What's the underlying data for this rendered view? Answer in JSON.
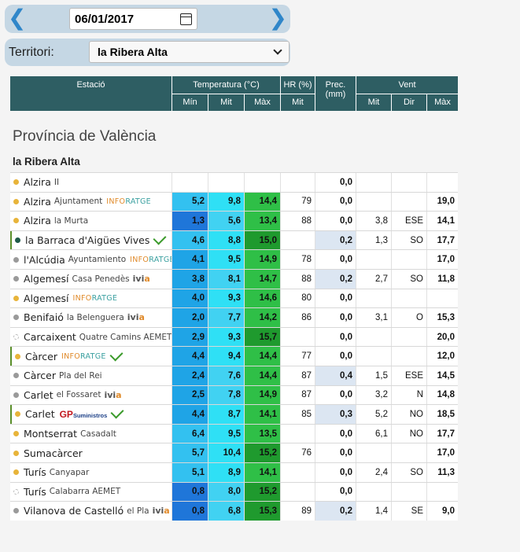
{
  "date_picker": {
    "value": "06/01/2017",
    "prev_icon": "chevron-left-icon",
    "next_icon": "chevron-right-icon",
    "calendar_icon": "calendar-icon"
  },
  "territory": {
    "label": "Territori:",
    "selected": "la Ribera Alta"
  },
  "table_header": {
    "station": "Estació",
    "temperature": "Temperatura (°C)",
    "humidity": "HR (%)",
    "precip": "Prec. (mm)",
    "wind": "Vent",
    "min": "Mín",
    "mit": "Mit",
    "max": "Màx",
    "dir": "Dir"
  },
  "province": "Província de València",
  "region": "la Ribera Alta",
  "colors": {
    "header_bg": "#2e5e63",
    "min_cold": "#1f76d9",
    "min_mild": "#1fa4e6",
    "min_warm": "#33c1f0",
    "mit_cool": "#41d2f2",
    "mit_mid": "#2fe0f5",
    "max_warm": "#2fbf47",
    "max_hot": "#1f9a2e",
    "precip_bg": "#dce6f2",
    "dot_yellow": "#e8b43a",
    "dot_grey": "#9a9a9a",
    "dot_teal": "#1f5a4a"
  },
  "stations": [
    {
      "name": "Alzira",
      "sub": "II",
      "dot": "yellow",
      "tmin": "",
      "tmit": "",
      "tmax": "",
      "hr": "",
      "prec": "0,0",
      "wmit": "",
      "wdir": "",
      "wmax": ""
    },
    {
      "name": "Alzira",
      "sub": "Ajuntament",
      "tag": "INFORATGE",
      "dot": "yellow",
      "tmin": "5,2",
      "tmit": "9,8",
      "tmax": "14,4",
      "hr": "79",
      "prec": "0,0",
      "wmit": "",
      "wdir": "",
      "wmax": "19,0"
    },
    {
      "name": "Alzira",
      "sub": "la Murta",
      "dot": "yellow",
      "tmin": "1,3",
      "tmit": "5,6",
      "tmax": "13,4",
      "hr": "88",
      "prec": "0,0",
      "wmit": "3,8",
      "wdir": "ESE",
      "wmax": "14,1"
    },
    {
      "name": "la Barraca d'Aigües Vives",
      "sub": "",
      "dot": "teal",
      "check": true,
      "tmin": "4,6",
      "tmit": "8,8",
      "tmax": "15,0",
      "hr": "",
      "prec": "0,2",
      "wmit": "1,3",
      "wdir": "SO",
      "wmax": "17,7"
    },
    {
      "name": "l'Alcúdia",
      "sub": "Ayuntamiento",
      "tag": "INFORATGE",
      "dot": "grey",
      "tmin": "4,1",
      "tmit": "9,5",
      "tmax": "14,9",
      "hr": "78",
      "prec": "0,0",
      "wmit": "",
      "wdir": "",
      "wmax": "17,0"
    },
    {
      "name": "Algemesí",
      "sub": "Casa Penedès",
      "ivia": "ivia",
      "dot": "grey",
      "tmin": "3,8",
      "tmit": "8,1",
      "tmax": "14,7",
      "hr": "88",
      "prec": "0,2",
      "wmit": "2,7",
      "wdir": "SO",
      "wmax": "11,8"
    },
    {
      "name": "Algemesí",
      "sub": "",
      "tag": "INFORATGE",
      "dot": "yellow",
      "tmin": "4,0",
      "tmit": "9,3",
      "tmax": "14,6",
      "hr": "80",
      "prec": "0,0",
      "wmit": "",
      "wdir": "",
      "wmax": ""
    },
    {
      "name": "Benifaió",
      "sub": "la Belenguera",
      "ivia": "ivia",
      "dot": "grey",
      "tmin": "2,0",
      "tmit": "7,7",
      "tmax": "14,2",
      "hr": "86",
      "prec": "0,0",
      "wmit": "3,1",
      "wdir": "O",
      "wmax": "15,3"
    },
    {
      "name": "Carcaixent",
      "sub": "Quatre Camins AEMET",
      "dot": "empty",
      "tmin": "2,9",
      "tmit": "9,3",
      "tmax": "15,7",
      "hr": "",
      "prec": "0,0",
      "wmit": "",
      "wdir": "",
      "wmax": "20,0"
    },
    {
      "name": "Càrcer",
      "sub": "",
      "tag": "INFORATGE",
      "dot": "yellow",
      "check": true,
      "tmin": "4,4",
      "tmit": "9,4",
      "tmax": "14,4",
      "hr": "77",
      "prec": "0,0",
      "wmit": "",
      "wdir": "",
      "wmax": "12,0"
    },
    {
      "name": "Càrcer",
      "sub": "Pla del Rei",
      "dot": "grey",
      "tmin": "2,4",
      "tmit": "7,6",
      "tmax": "14,4",
      "hr": "87",
      "prec": "0,4",
      "wmit": "1,5",
      "wdir": "ESE",
      "wmax": "14,5"
    },
    {
      "name": "Carlet",
      "sub": "el Fossaret",
      "ivia": "ivia",
      "dot": "grey",
      "tmin": "2,5",
      "tmit": "7,8",
      "tmax": "14,9",
      "hr": "87",
      "prec": "0,0",
      "wmit": "3,2",
      "wdir": "N",
      "wmax": "14,8"
    },
    {
      "name": "Carlet",
      "sub": "",
      "gp": true,
      "gp_main": "GP",
      "gp_small": "Suministros",
      "dot": "yellow",
      "check": true,
      "tmin": "4,4",
      "tmit": "8,7",
      "tmax": "14,1",
      "hr": "85",
      "prec": "0,3",
      "wmit": "5,2",
      "wdir": "NO",
      "wmax": "18,5"
    },
    {
      "name": "Montserrat",
      "sub": "Casadalt",
      "dot": "yellow",
      "tmin": "6,4",
      "tmit": "9,5",
      "tmax": "13,5",
      "hr": "",
      "prec": "0,0",
      "wmit": "6,1",
      "wdir": "NO",
      "wmax": "17,7"
    },
    {
      "name": "Sumacàrcer",
      "sub": "",
      "dot": "yellow",
      "tmin": "5,7",
      "tmit": "10,4",
      "tmax": "15,2",
      "hr": "76",
      "prec": "0,0",
      "wmit": "",
      "wdir": "",
      "wmax": "17,0"
    },
    {
      "name": "Turís",
      "sub": "Canyapar",
      "dot": "yellow",
      "tmin": "5,1",
      "tmit": "8,9",
      "tmax": "14,1",
      "hr": "",
      "prec": "0,0",
      "wmit": "2,4",
      "wdir": "SO",
      "wmax": "11,3"
    },
    {
      "name": "Turís",
      "sub": "Calabarra AEMET",
      "dot": "empty",
      "tmin": "0,8",
      "tmit": "8,0",
      "tmax": "15,2",
      "hr": "",
      "prec": "0,0",
      "wmit": "",
      "wdir": "",
      "wmax": ""
    },
    {
      "name": "Vilanova de Castelló",
      "sub": "el Pla",
      "ivia": "ivia",
      "dot": "grey",
      "tmin": "0,8",
      "tmit": "6,8",
      "tmax": "15,3",
      "hr": "89",
      "prec": "0,2",
      "wmit": "1,4",
      "wdir": "SE",
      "wmax": "9,0"
    }
  ]
}
